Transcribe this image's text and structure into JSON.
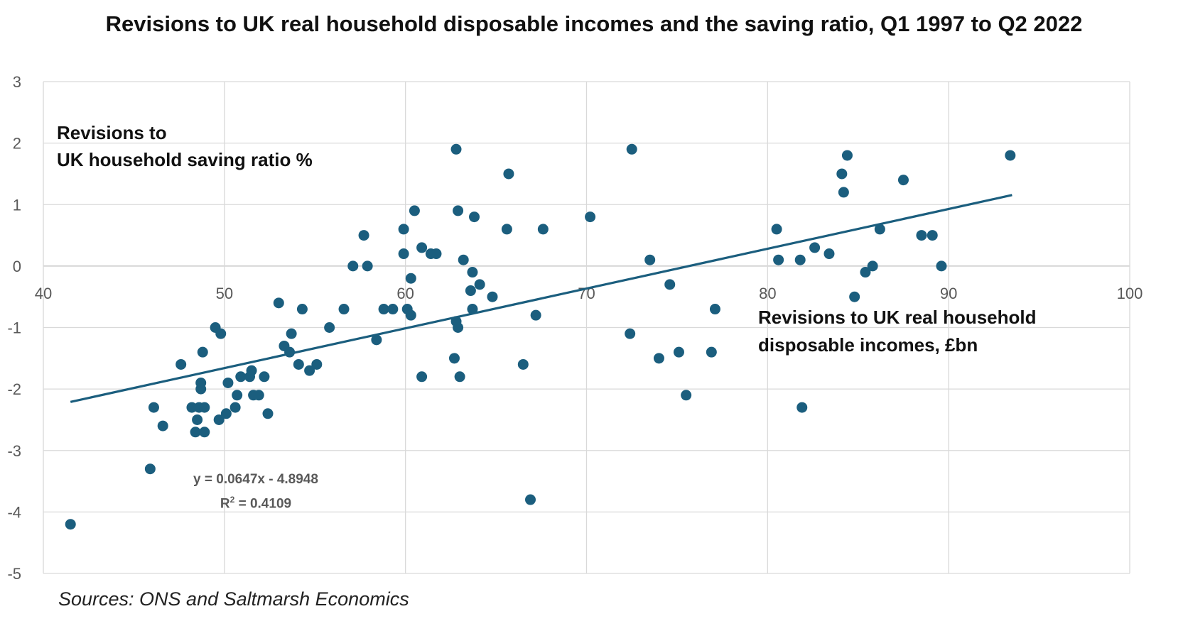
{
  "chart_data": {
    "type": "scatter",
    "title": "Revisions to UK real household disposable incomes and the saving ratio, Q1 1997 to Q2 2022",
    "ylabel_lines": [
      "Revisions to",
      "UK household saving ratio %"
    ],
    "xlabel_lines": [
      "Revisions to UK real household",
      "disposable incomes, £bn"
    ],
    "xlim": [
      40,
      100
    ],
    "ylim": [
      -5,
      3
    ],
    "xticks": [
      40,
      50,
      60,
      70,
      80,
      90,
      100
    ],
    "yticks": [
      3,
      2,
      1,
      0,
      -1,
      -2,
      -3,
      -4,
      -5
    ],
    "grid": true,
    "marker_color": "#1b5e7e",
    "trendline": {
      "slope": 0.0647,
      "intercept": -4.8948,
      "x_range": [
        41.5,
        93.5
      ],
      "equation_label": "y = 0.0647x - 4.8948",
      "r2_prefix": "R",
      "r2_sup": "2",
      "r2_suffix": " = 0.4109",
      "color": "#1b5e7e"
    },
    "points": [
      [
        41.5,
        -4.2
      ],
      [
        45.9,
        -3.3
      ],
      [
        46.1,
        -2.3
      ],
      [
        46.6,
        -2.6
      ],
      [
        47.6,
        -1.6
      ],
      [
        48.2,
        -2.3
      ],
      [
        48.4,
        -2.7
      ],
      [
        48.5,
        -2.5
      ],
      [
        48.6,
        -2.3
      ],
      [
        48.7,
        -1.9
      ],
      [
        48.7,
        -2.0
      ],
      [
        48.8,
        -1.4
      ],
      [
        48.9,
        -2.3
      ],
      [
        48.9,
        -2.7
      ],
      [
        49.5,
        -1.0
      ],
      [
        49.7,
        -2.5
      ],
      [
        49.8,
        -1.1
      ],
      [
        50.1,
        -2.4
      ],
      [
        50.2,
        -1.9
      ],
      [
        50.6,
        -2.3
      ],
      [
        50.7,
        -2.1
      ],
      [
        50.9,
        -1.8
      ],
      [
        51.4,
        -1.8
      ],
      [
        51.5,
        -1.7
      ],
      [
        51.6,
        -2.1
      ],
      [
        51.9,
        -2.1
      ],
      [
        52.2,
        -1.8
      ],
      [
        52.4,
        -2.4
      ],
      [
        53.0,
        -0.6
      ],
      [
        53.3,
        -1.3
      ],
      [
        53.6,
        -1.4
      ],
      [
        53.7,
        -1.1
      ],
      [
        54.1,
        -1.6
      ],
      [
        54.3,
        -0.7
      ],
      [
        54.7,
        -1.7
      ],
      [
        55.1,
        -1.6
      ],
      [
        55.8,
        -1.0
      ],
      [
        56.6,
        -0.7
      ],
      [
        57.1,
        0.0
      ],
      [
        57.7,
        0.5
      ],
      [
        57.9,
        0.0
      ],
      [
        58.4,
        -1.2
      ],
      [
        58.8,
        -0.7
      ],
      [
        59.3,
        -0.7
      ],
      [
        59.9,
        0.6
      ],
      [
        59.9,
        0.2
      ],
      [
        60.1,
        -0.7
      ],
      [
        60.3,
        -0.8
      ],
      [
        60.3,
        -0.2
      ],
      [
        60.5,
        0.9
      ],
      [
        60.9,
        -1.8
      ],
      [
        60.9,
        0.3
      ],
      [
        61.4,
        0.2
      ],
      [
        61.7,
        0.2
      ],
      [
        62.7,
        -1.5
      ],
      [
        62.8,
        1.9
      ],
      [
        62.8,
        -0.9
      ],
      [
        62.9,
        0.9
      ],
      [
        62.9,
        -1.0
      ],
      [
        63.0,
        -1.8
      ],
      [
        63.2,
        0.1
      ],
      [
        63.6,
        -0.4
      ],
      [
        63.7,
        -0.7
      ],
      [
        63.7,
        -0.1
      ],
      [
        63.8,
        0.8
      ],
      [
        64.1,
        -0.3
      ],
      [
        64.8,
        -0.5
      ],
      [
        65.6,
        0.6
      ],
      [
        65.7,
        1.5
      ],
      [
        66.5,
        -1.6
      ],
      [
        66.9,
        -3.8
      ],
      [
        67.2,
        -0.8
      ],
      [
        67.6,
        0.6
      ],
      [
        70.2,
        0.8
      ],
      [
        72.4,
        -1.1
      ],
      [
        72.5,
        1.9
      ],
      [
        73.5,
        0.1
      ],
      [
        74.0,
        -1.5
      ],
      [
        74.6,
        -0.3
      ],
      [
        75.1,
        -1.4
      ],
      [
        75.5,
        -2.1
      ],
      [
        76.9,
        -1.4
      ],
      [
        77.1,
        -0.7
      ],
      [
        80.5,
        0.6
      ],
      [
        80.6,
        0.1
      ],
      [
        81.8,
        0.1
      ],
      [
        81.9,
        -2.3
      ],
      [
        82.6,
        0.3
      ],
      [
        83.4,
        0.2
      ],
      [
        84.1,
        1.5
      ],
      [
        84.2,
        1.2
      ],
      [
        84.4,
        1.8
      ],
      [
        84.8,
        -0.5
      ],
      [
        85.4,
        -0.1
      ],
      [
        85.8,
        0.0
      ],
      [
        86.2,
        0.6
      ],
      [
        87.5,
        1.4
      ],
      [
        88.5,
        0.5
      ],
      [
        89.1,
        0.5
      ],
      [
        89.6,
        0.0
      ],
      [
        93.4,
        1.8
      ]
    ]
  },
  "source_text": "Sources: ONS and Saltmarsh Economics"
}
